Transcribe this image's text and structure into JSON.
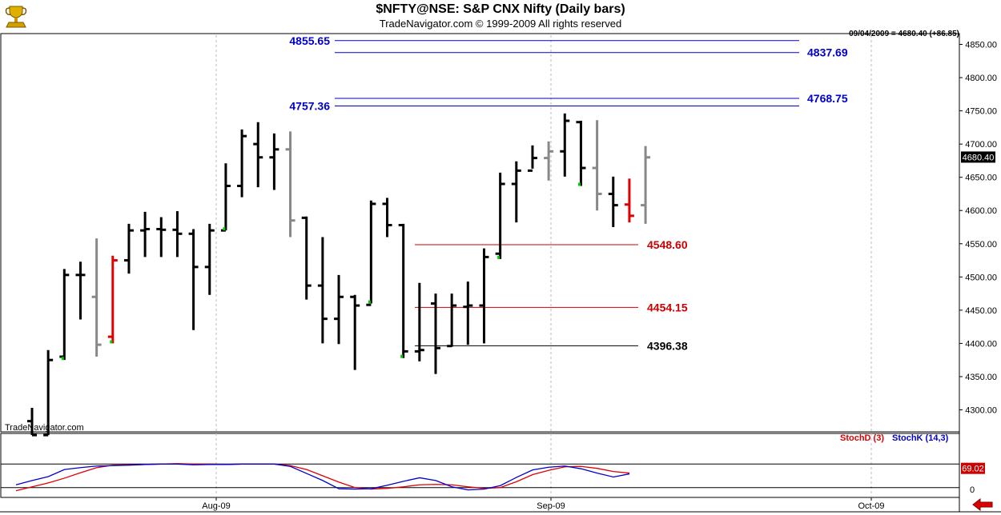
{
  "title": "$NFTY@NSE:  S&P CNX Nifty  (Daily bars)",
  "subtitle": "TradeNavigator.com © 1999-2009 All rights reserved",
  "date_readout": "09/04/2009 = 4680.40 (+86.85)",
  "watermark": "TradeNavigator.com",
  "last_price_tag": "4680.40",
  "stoch_value_tag": "69.02",
  "legend": {
    "stochd": "StochD (3)",
    "stochk": "StochK (14,3)"
  },
  "colors": {
    "up_bar": "#000000",
    "neutral_bar": "#888888",
    "down_bar": "#e00000",
    "blue_level": "#0000cc",
    "red_level": "#cc0000",
    "black_level": "#000000",
    "stochK": "#0000cc",
    "stochD": "#e00000",
    "tick_green": "#00cc00",
    "nav_arrow": "#dd0000"
  },
  "icons": {
    "logo": "gold-trophy-logo-icon",
    "nav": "left-arrow-icon"
  },
  "chart_data": [
    {
      "type": "ohlc",
      "title": "$NFTY@NSE:  S&P CNX Nifty  (Daily bars)",
      "ylim": [
        4262,
        4880
      ],
      "yticks": [
        4300,
        4350,
        4400,
        4450,
        4500,
        4550,
        4600,
        4650,
        4700,
        4750,
        4800,
        4850
      ],
      "ytick_labels": [
        "4300.00",
        "4350.00",
        "4400.00",
        "4450.00",
        "4500.00",
        "4550.00",
        "4600.00",
        "4650.00",
        "4700.00",
        "4750.00",
        "4800.00",
        "4850.00"
      ],
      "x_labels": [
        "Aug-09",
        "Sep-09",
        "Oct-09"
      ],
      "grid": "vertical-dashed",
      "bars": [
        {
          "o": 4283,
          "h": 4303,
          "l": 4262,
          "c": 4262,
          "col": "up"
        },
        {
          "o": 4262,
          "h": 4390,
          "l": 4262,
          "c": 4375,
          "col": "up"
        },
        {
          "o": 4380,
          "h": 4512,
          "l": 4375,
          "c": 4503,
          "col": "up",
          "tick": "green"
        },
        {
          "o": 4503,
          "h": 4523,
          "l": 4436,
          "c": 4503,
          "col": "up"
        },
        {
          "o": 4470,
          "h": 4558,
          "l": 4380,
          "c": 4398,
          "col": "neutral"
        },
        {
          "o": 4410,
          "h": 4532,
          "l": 4400,
          "c": 4525,
          "col": "down",
          "tick": "green"
        },
        {
          "o": 4525,
          "h": 4580,
          "l": 4505,
          "c": 4570,
          "col": "up"
        },
        {
          "o": 4570,
          "h": 4598,
          "l": 4530,
          "c": 4572,
          "col": "up"
        },
        {
          "o": 4572,
          "h": 4590,
          "l": 4530,
          "c": 4571,
          "col": "up"
        },
        {
          "o": 4571,
          "h": 4599,
          "l": 4530,
          "c": 4565,
          "col": "up"
        },
        {
          "o": 4565,
          "h": 4572,
          "l": 4420,
          "c": 4515,
          "col": "up"
        },
        {
          "o": 4515,
          "h": 4580,
          "l": 4473,
          "c": 4570,
          "col": "up"
        },
        {
          "o": 4570,
          "h": 4671,
          "l": 4570,
          "c": 4637,
          "col": "up",
          "tick": "green"
        },
        {
          "o": 4637,
          "h": 4722,
          "l": 4620,
          "c": 4712,
          "col": "up"
        },
        {
          "o": 4700,
          "h": 4733,
          "l": 4635,
          "c": 4680,
          "col": "up"
        },
        {
          "o": 4680,
          "h": 4716,
          "l": 4631,
          "c": 4692,
          "col": "up"
        },
        {
          "o": 4692,
          "h": 4719,
          "l": 4560,
          "c": 4585,
          "col": "neutral"
        },
        {
          "o": 4589,
          "h": 4591,
          "l": 4466,
          "c": 4487,
          "col": "up"
        },
        {
          "o": 4487,
          "h": 4560,
          "l": 4400,
          "c": 4437,
          "col": "up"
        },
        {
          "o": 4437,
          "h": 4503,
          "l": 4399,
          "c": 4470,
          "col": "up"
        },
        {
          "o": 4470,
          "h": 4473,
          "l": 4360,
          "c": 4457,
          "col": "up"
        },
        {
          "o": 4458,
          "h": 4615,
          "l": 4460,
          "c": 4610,
          "col": "up",
          "tick": "green"
        },
        {
          "o": 4610,
          "h": 4619,
          "l": 4560,
          "c": 4578,
          "col": "up"
        },
        {
          "o": 4578,
          "h": 4580,
          "l": 4378,
          "c": 4388,
          "col": "up",
          "tick": "green"
        },
        {
          "o": 4388,
          "h": 4491,
          "l": 4373,
          "c": 4390,
          "col": "up"
        },
        {
          "o": 4460,
          "h": 4475,
          "l": 4354,
          "c": 4393,
          "col": "up"
        },
        {
          "o": 4396,
          "h": 4475,
          "l": 4395,
          "c": 4457,
          "col": "up"
        },
        {
          "o": 4455,
          "h": 4493,
          "l": 4398,
          "c": 4457,
          "col": "up"
        },
        {
          "o": 4457,
          "h": 4543,
          "l": 4400,
          "c": 4530,
          "col": "up"
        },
        {
          "o": 4535,
          "h": 4657,
          "l": 4527,
          "c": 4640,
          "col": "up",
          "tick": "green"
        },
        {
          "o": 4640,
          "h": 4674,
          "l": 4582,
          "c": 4660,
          "col": "up"
        },
        {
          "o": 4660,
          "h": 4698,
          "l": 4663,
          "c": 4679,
          "col": "up"
        },
        {
          "o": 4679,
          "h": 4704,
          "l": 4645,
          "c": 4689,
          "col": "neutral"
        },
        {
          "o": 4689,
          "h": 4746,
          "l": 4651,
          "c": 4735,
          "col": "up"
        },
        {
          "o": 4733,
          "h": 4735,
          "l": 4637,
          "c": 4664,
          "col": "up",
          "tick": "green"
        },
        {
          "o": 4664,
          "h": 4736,
          "l": 4600,
          "c": 4625,
          "col": "neutral"
        },
        {
          "o": 4625,
          "h": 4651,
          "l": 4575,
          "c": 4608,
          "col": "up"
        },
        {
          "o": 4609,
          "h": 4648,
          "l": 4582,
          "c": 4592,
          "col": "down"
        },
        {
          "o": 4608,
          "h": 4697,
          "l": 4580,
          "c": 4680,
          "col": "neutral"
        }
      ],
      "levels": [
        {
          "label": "4855.65",
          "value": 4855.65,
          "color": "blue",
          "label_side": "left"
        },
        {
          "label": "4837.69",
          "value": 4837.69,
          "color": "blue",
          "label_side": "right"
        },
        {
          "label": "4757.36",
          "value": 4757.36,
          "color": "blue",
          "label_side": "left"
        },
        {
          "label": "4768.75",
          "value": 4768.75,
          "color": "blue",
          "label_side": "right"
        },
        {
          "label": "4548.60",
          "value": 4548.6,
          "color": "red",
          "label_side": "right"
        },
        {
          "label": "4454.15",
          "value": 4454.15,
          "color": "red",
          "label_side": "right"
        },
        {
          "label": "4396.38",
          "value": 4396.38,
          "color": "black",
          "label_side": "right"
        }
      ]
    },
    {
      "type": "line",
      "title": "Stochastic",
      "ylim": [
        0,
        100
      ],
      "yticks": [
        0
      ],
      "ytick_labels": [
        "0"
      ],
      "ref_lines": [
        20,
        80
      ],
      "series": [
        {
          "name": "StochD (3)",
          "color": "red",
          "values": [
            12,
            22,
            32,
            44,
            58,
            71,
            77,
            78,
            79,
            80,
            81,
            80,
            80,
            79,
            80,
            80,
            80,
            76,
            66,
            50,
            34,
            20,
            16,
            18,
            22,
            27,
            28,
            27,
            22,
            18,
            20,
            35,
            53,
            64,
            73,
            74,
            69,
            61,
            57
          ]
        },
        {
          "name": "StochK (14,3)",
          "color": "blue",
          "values": [
            27,
            38,
            48,
            66,
            71,
            75,
            76,
            77,
            79,
            80,
            80,
            78,
            79,
            79,
            80,
            80,
            80,
            74,
            56,
            38,
            17,
            16,
            17,
            26,
            36,
            45,
            38,
            22,
            14,
            16,
            25,
            46,
            65,
            72,
            75,
            68,
            57,
            47,
            55
          ]
        }
      ]
    }
  ]
}
